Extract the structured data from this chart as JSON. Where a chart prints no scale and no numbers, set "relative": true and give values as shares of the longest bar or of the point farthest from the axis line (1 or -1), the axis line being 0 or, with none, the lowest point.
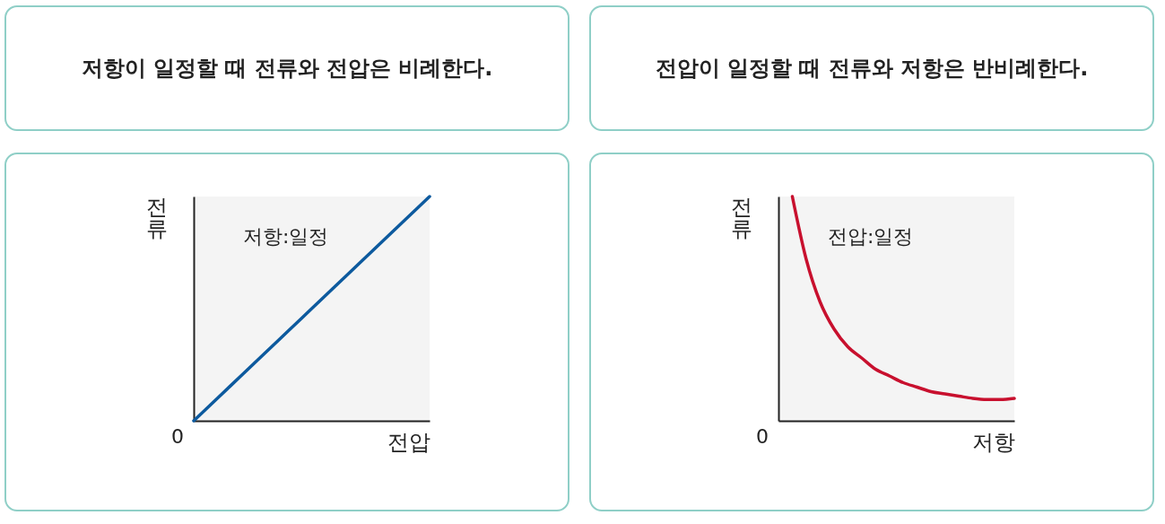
{
  "chart_data": [
    {
      "type": "line",
      "title": "저항이 일정할 때 전류와 전압은 비례한다.",
      "xlabel": "전압",
      "ylabel": "전류",
      "relative": true,
      "annotations": [
        "저항:일정",
        "0"
      ],
      "categories": [
        null,
        null,
        null,
        null,
        null,
        null,
        null,
        null,
        null,
        null,
        null
      ],
      "series": [
        {
          "color": "#0d5a9e",
          "values": [
            0,
            0.1,
            0.2,
            0.3,
            0.4,
            0.5,
            0.6,
            0.7,
            0.8,
            0.9,
            1
          ]
        }
      ]
    },
    {
      "type": "line",
      "title": "전압이 일정할 때 전류와 저항은 반비례한다.",
      "xlabel": "저항",
      "ylabel": "전류",
      "relative": true,
      "annotations": [
        "전압:일정",
        "0"
      ],
      "categories": [
        null,
        null,
        null,
        null,
        null,
        null,
        null,
        null,
        null,
        null,
        null,
        null,
        null,
        null,
        null,
        null,
        null,
        null
      ],
      "series": [
        {
          "color": "#c8102e",
          "values": [
            null,
            1,
            0.72,
            0.53,
            0.41,
            0.33,
            0.28,
            0.23,
            0.2,
            0.17,
            0.15,
            0.13,
            0.12,
            0.11,
            0.1,
            0.095,
            0.095,
            0.1
          ]
        }
      ]
    }
  ]
}
